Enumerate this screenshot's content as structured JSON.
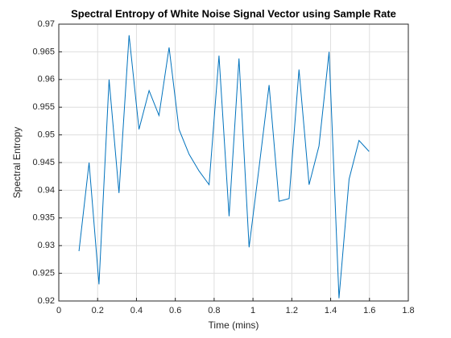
{
  "chart_data": {
    "type": "line",
    "title": "Spectral Entropy of White Noise Signal Vector using Sample Rate",
    "xlabel": "Time (mins)",
    "ylabel": "Spectral Entropy",
    "x": [
      0.104,
      0.156,
      0.207,
      0.259,
      0.31,
      0.362,
      0.413,
      0.465,
      0.516,
      0.568,
      0.619,
      0.671,
      0.722,
      0.774,
      0.825,
      0.877,
      0.928,
      0.98,
      1.031,
      1.083,
      1.134,
      1.186,
      1.237,
      1.289,
      1.34,
      1.392,
      1.443,
      1.495,
      1.546,
      1.598
    ],
    "series": [
      {
        "color": "#0072bd",
        "values": [
          0.929,
          0.945,
          0.923,
          0.96,
          0.9395,
          0.968,
          0.951,
          0.958,
          0.9535,
          0.9658,
          0.951,
          0.9465,
          0.9435,
          0.941,
          0.9643,
          0.9353,
          0.9638,
          0.9297,
          0.944,
          0.959,
          0.938,
          0.9385,
          0.9618,
          0.941,
          0.948,
          0.965,
          0.9205,
          0.942,
          0.949,
          0.947
        ]
      }
    ],
    "xlim": [
      0,
      1.8
    ],
    "xticks": [
      0,
      0.2,
      0.4,
      0.6,
      0.8,
      1,
      1.2,
      1.4,
      1.6,
      1.8
    ],
    "ylim": [
      0.92,
      0.97
    ],
    "yticks": [
      0.92,
      0.925,
      0.93,
      0.935,
      0.94,
      0.945,
      0.95,
      0.955,
      0.96,
      0.965,
      0.97
    ],
    "grid": true
  }
}
